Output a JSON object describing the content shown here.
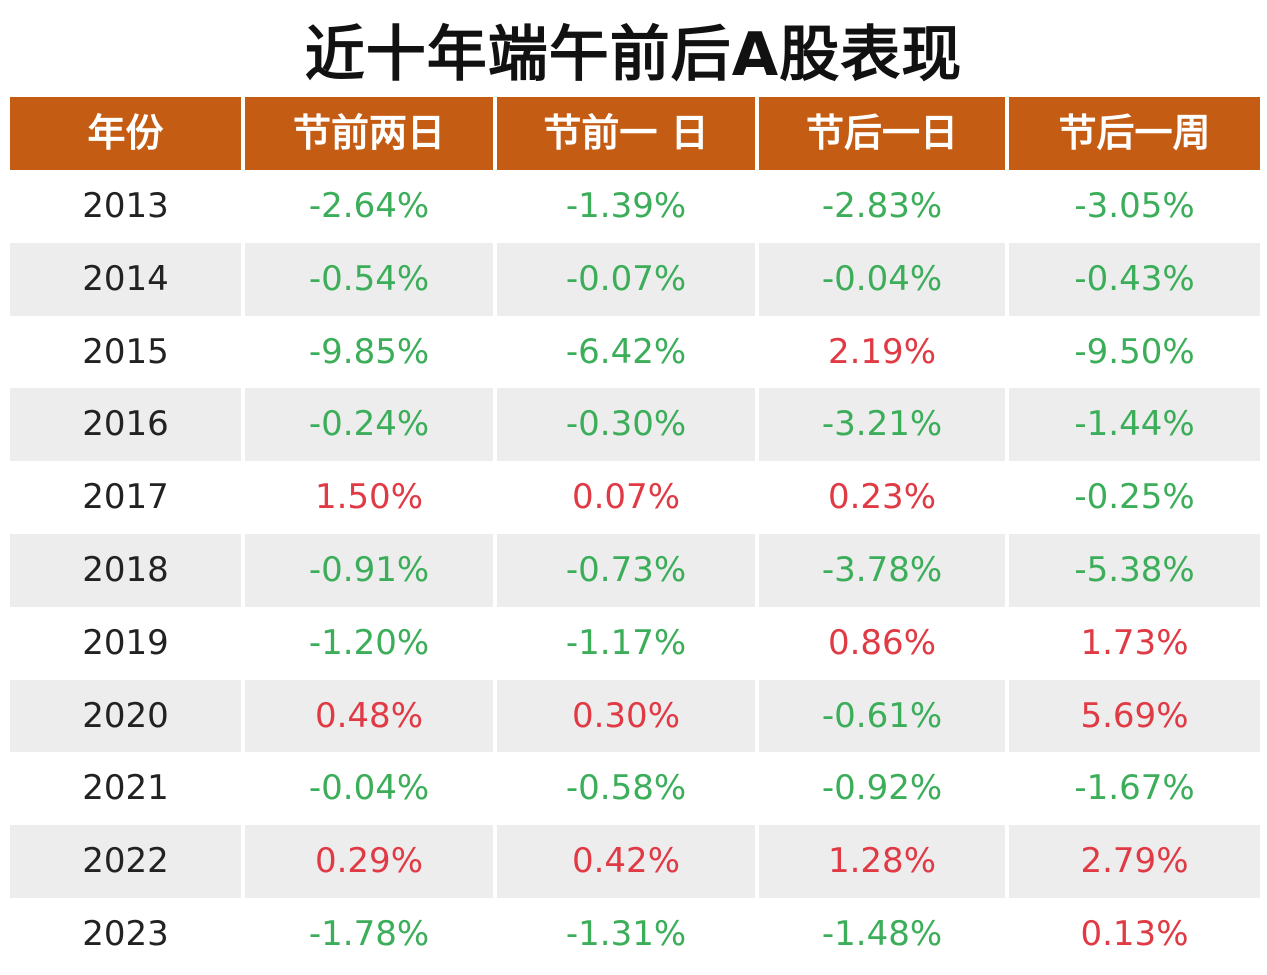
{
  "title": "近十年端午前后A股表现",
  "colors": {
    "header_bg": "#c45c14",
    "negative": "#3cae5a",
    "positive": "#e03a45",
    "alt_row": "#ededed"
  },
  "table": {
    "columns": [
      "年份",
      "节前两日",
      "节前一 日",
      "节后一日",
      "节后一周"
    ],
    "rows": [
      {
        "year": "2013",
        "values": [
          "-2.64%",
          "-1.39%",
          "-2.83%",
          "-3.05%"
        ]
      },
      {
        "year": "2014",
        "values": [
          "-0.54%",
          "-0.07%",
          "-0.04%",
          "-0.43%"
        ]
      },
      {
        "year": "2015",
        "values": [
          "-9.85%",
          "-6.42%",
          "2.19%",
          "-9.50%"
        ]
      },
      {
        "year": "2016",
        "values": [
          "-0.24%",
          "-0.30%",
          "-3.21%",
          "-1.44%"
        ]
      },
      {
        "year": "2017",
        "values": [
          "1.50%",
          "0.07%",
          "0.23%",
          "-0.25%"
        ]
      },
      {
        "year": "2018",
        "values": [
          "-0.91%",
          "-0.73%",
          "-3.78%",
          "-5.38%"
        ]
      },
      {
        "year": "2019",
        "values": [
          "-1.20%",
          "-1.17%",
          "0.86%",
          "1.73%"
        ]
      },
      {
        "year": "2020",
        "values": [
          "0.48%",
          "0.30%",
          "-0.61%",
          "5.69%"
        ]
      },
      {
        "year": "2021",
        "values": [
          "-0.04%",
          "-0.58%",
          "-0.92%",
          "-1.67%"
        ]
      },
      {
        "year": "2022",
        "values": [
          "0.29%",
          "0.42%",
          "1.28%",
          "2.79%"
        ]
      },
      {
        "year": "2023",
        "values": [
          "-1.78%",
          "-1.31%",
          "-1.48%",
          "0.13%"
        ]
      }
    ]
  }
}
